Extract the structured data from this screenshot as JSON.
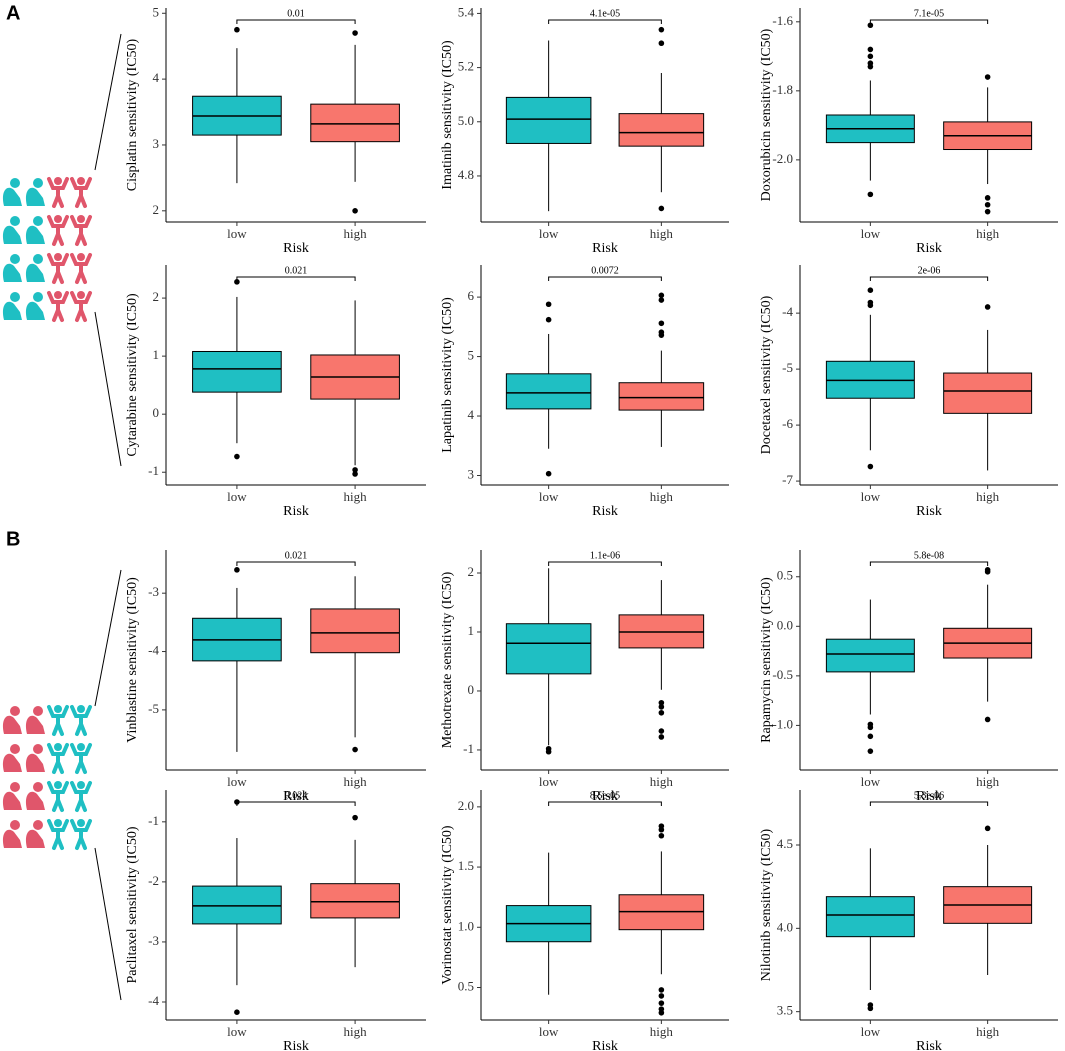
{
  "panel_labels": [
    "A",
    "B"
  ],
  "chart_data": [
    {
      "type": "box",
      "ylabel": "Cisplatin sensitivity (IC50)",
      "xlabel": "Risk",
      "categories": [
        "low",
        "high"
      ],
      "colors": [
        "#1FBFC3",
        "#F8766D"
      ],
      "p_value": "0.01",
      "ylim": [
        1.83,
        5.08
      ],
      "yticks": [
        2,
        3,
        4,
        5
      ],
      "boxes": [
        {
          "min": 2.42,
          "q1": 3.15,
          "median": 3.44,
          "q3": 3.74,
          "max": 4.47,
          "outliers": [
            4.75
          ]
        },
        {
          "min": 2.44,
          "q1": 3.05,
          "median": 3.32,
          "q3": 3.62,
          "max": 4.52,
          "outliers": [
            4.7,
            2.0
          ]
        }
      ]
    },
    {
      "type": "box",
      "ylabel": "Imatinib sensitivity (IC50)",
      "xlabel": "Risk",
      "categories": [
        "low",
        "high"
      ],
      "colors": [
        "#1FBFC3",
        "#F8766D"
      ],
      "p_value": "4.1e-05",
      "ylim": [
        4.63,
        5.42
      ],
      "yticks": [
        4.8,
        {
          "value": 5,
          "label": "5.0"
        },
        5.2,
        5.4
      ],
      "boxes": [
        {
          "min": 4.67,
          "q1": 4.92,
          "median": 5.01,
          "q3": 5.09,
          "max": 5.3,
          "outliers": []
        },
        {
          "min": 4.74,
          "q1": 4.91,
          "median": 4.96,
          "q3": 5.03,
          "max": 5.18,
          "outliers": [
            5.34,
            5.29,
            4.68
          ]
        }
      ]
    },
    {
      "type": "box",
      "ylabel": "Doxorubicin sensitivity (IC50)",
      "xlabel": "Risk",
      "categories": [
        "low",
        "high"
      ],
      "colors": [
        "#1FBFC3",
        "#F8766D"
      ],
      "p_value": "7.1e-05",
      "ylim": [
        -2.18,
        -1.56
      ],
      "yticks": [
        {
          "value": -2,
          "label": "-2.0"
        },
        -1.8,
        -1.6
      ],
      "boxes": [
        {
          "min": -2.06,
          "q1": -1.95,
          "median": -1.91,
          "q3": -1.87,
          "max": -1.77,
          "outliers": [
            -1.61,
            -1.68,
            -1.7,
            -1.72,
            -1.73,
            -2.1
          ]
        },
        {
          "min": -2.07,
          "q1": -1.97,
          "median": -1.93,
          "q3": -1.89,
          "max": -1.79,
          "outliers": [
            -1.76,
            -2.11,
            -2.13,
            -2.15
          ]
        }
      ]
    },
    {
      "type": "box",
      "ylabel": "Cytarabine sensitivity (IC50)",
      "xlabel": "Risk",
      "categories": [
        "low",
        "high"
      ],
      "colors": [
        "#1FBFC3",
        "#F8766D"
      ],
      "p_value": "0.021",
      "ylim": [
        -1.22,
        2.57
      ],
      "yticks": [
        -1,
        0,
        1,
        2
      ],
      "boxes": [
        {
          "min": -0.5,
          "q1": 0.38,
          "median": 0.78,
          "q3": 1.08,
          "max": 2.02,
          "outliers": [
            2.28,
            -0.73
          ]
        },
        {
          "min": -0.88,
          "q1": 0.26,
          "median": 0.64,
          "q3": 1.02,
          "max": 1.96,
          "outliers": [
            -0.96,
            -1.03
          ]
        }
      ]
    },
    {
      "type": "box",
      "ylabel": "Lapatinib sensitivity (IC50)",
      "xlabel": "Risk",
      "categories": [
        "low",
        "high"
      ],
      "colors": [
        "#1FBFC3",
        "#F8766D"
      ],
      "p_value": "0.0072",
      "ylim": [
        2.84,
        6.54
      ],
      "yticks": [
        3,
        4,
        5,
        6
      ],
      "boxes": [
        {
          "min": 3.45,
          "q1": 4.12,
          "median": 4.39,
          "q3": 4.71,
          "max": 5.38,
          "outliers": [
            5.88,
            5.62,
            3.03
          ]
        },
        {
          "min": 3.48,
          "q1": 4.1,
          "median": 4.31,
          "q3": 4.56,
          "max": 5.1,
          "outliers": [
            6.03,
            5.95,
            5.56,
            5.41,
            5.36
          ]
        }
      ]
    },
    {
      "type": "box",
      "ylabel": "Docetaxel sensitivity (IC50)",
      "xlabel": "Risk",
      "categories": [
        "low",
        "high"
      ],
      "colors": [
        "#1FBFC3",
        "#F8766D"
      ],
      "p_value": "2e-06",
      "ylim": [
        -7.07,
        -3.14
      ],
      "yticks": [
        -7,
        -6,
        -5,
        -4
      ],
      "boxes": [
        {
          "min": -6.45,
          "q1": -5.52,
          "median": -5.2,
          "q3": -4.86,
          "max": -4.03,
          "outliers": [
            -3.59,
            -3.81,
            -3.86,
            -6.74
          ]
        },
        {
          "min": -6.81,
          "q1": -5.79,
          "median": -5.39,
          "q3": -5.07,
          "max": -4.3,
          "outliers": [
            -3.89
          ]
        }
      ]
    },
    {
      "type": "box",
      "ylabel": "Vinblastine sensitivity (IC50)",
      "xlabel": "Risk",
      "categories": [
        "low",
        "high"
      ],
      "colors": [
        "#1FBFC3",
        "#F8766D"
      ],
      "p_value": "0.021",
      "ylim": [
        -6.03,
        -2.26
      ],
      "yticks": [
        -5,
        -4,
        -3
      ],
      "boxes": [
        {
          "min": -5.72,
          "q1": -4.16,
          "median": -3.8,
          "q3": -3.43,
          "max": -2.91,
          "outliers": [
            -2.6
          ]
        },
        {
          "min": -5.47,
          "q1": -4.02,
          "median": -3.68,
          "q3": -3.27,
          "max": -2.71,
          "outliers": [
            -5.68
          ]
        }
      ]
    },
    {
      "type": "box",
      "ylabel": "Methotrexate sensitivity (IC50)",
      "xlabel": "Risk",
      "categories": [
        "low",
        "high"
      ],
      "colors": [
        "#1FBFC3",
        "#F8766D"
      ],
      "p_value": "1.1e-06",
      "ylim": [
        -1.34,
        2.39
      ],
      "yticks": [
        -1,
        0,
        1,
        2
      ],
      "boxes": [
        {
          "min": -0.92,
          "q1": 0.29,
          "median": 0.81,
          "q3": 1.14,
          "max": 2.08,
          "outliers": [
            -0.98,
            -1.03
          ]
        },
        {
          "min": 0.02,
          "q1": 0.73,
          "median": 1.0,
          "q3": 1.29,
          "max": 1.88,
          "outliers": [
            -0.2,
            -0.27,
            -0.37,
            -0.68,
            -0.78
          ]
        }
      ]
    },
    {
      "type": "box",
      "ylabel": "Rapamycin sensitivity (IC50)",
      "xlabel": "Risk",
      "categories": [
        "low",
        "high"
      ],
      "colors": [
        "#1FBFC3",
        "#F8766D"
      ],
      "p_value": "5.8e-08",
      "ylim": [
        -1.45,
        0.77
      ],
      "yticks": [
        {
          "value": -1,
          "label": "-1.0"
        },
        -0.5,
        {
          "value": 0,
          "label": "0.0"
        },
        0.5
      ],
      "boxes": [
        {
          "min": -0.89,
          "q1": -0.46,
          "median": -0.28,
          "q3": -0.13,
          "max": 0.27,
          "outliers": [
            -0.99,
            -1.02,
            -1.11,
            -1.26
          ]
        },
        {
          "min": -0.76,
          "q1": -0.32,
          "median": -0.17,
          "q3": -0.02,
          "max": 0.42,
          "outliers": [
            0.57,
            0.55,
            -0.94
          ]
        }
      ]
    },
    {
      "type": "box",
      "ylabel": "Paclitaxel sensitivity (IC50)",
      "xlabel": "Risk",
      "categories": [
        "low",
        "high"
      ],
      "colors": [
        "#1FBFC3",
        "#F8766D"
      ],
      "p_value": "0.024",
      "ylim": [
        -4.3,
        -0.47
      ],
      "yticks": [
        -4,
        -3,
        -2,
        -1
      ],
      "boxes": [
        {
          "min": -3.72,
          "q1": -2.7,
          "median": -2.4,
          "q3": -2.07,
          "max": -1.27,
          "outliers": [
            -0.67,
            -4.17
          ]
        },
        {
          "min": -3.42,
          "q1": -2.6,
          "median": -2.33,
          "q3": -2.03,
          "max": -1.3,
          "outliers": [
            -0.93
          ]
        }
      ]
    },
    {
      "type": "box",
      "ylabel": "Vorinostat sensitivity (IC50)",
      "xlabel": "Risk",
      "categories": [
        "low",
        "high"
      ],
      "colors": [
        "#1FBFC3",
        "#F8766D"
      ],
      "p_value": "8.5e-05",
      "ylim": [
        0.23,
        2.14
      ],
      "yticks": [
        0.5,
        {
          "value": 1,
          "label": "1.0"
        },
        1.5,
        {
          "value": 2,
          "label": "2.0"
        }
      ],
      "boxes": [
        {
          "min": 0.44,
          "q1": 0.88,
          "median": 1.03,
          "q3": 1.18,
          "max": 1.62,
          "outliers": []
        },
        {
          "min": 0.61,
          "q1": 0.98,
          "median": 1.13,
          "q3": 1.27,
          "max": 1.63,
          "outliers": [
            1.84,
            1.81,
            1.76,
            0.48,
            0.43,
            0.37,
            0.32,
            0.29
          ]
        }
      ]
    },
    {
      "type": "box",
      "ylabel": "Nilotinib sensitivity (IC50)",
      "xlabel": "Risk",
      "categories": [
        "low",
        "high"
      ],
      "colors": [
        "#1FBFC3",
        "#F8766D"
      ],
      "p_value": "5.3e-06",
      "ylim": [
        3.45,
        4.83
      ],
      "yticks": [
        3.5,
        {
          "value": 4,
          "label": "4.0"
        },
        4.5
      ],
      "boxes": [
        {
          "min": 3.63,
          "q1": 3.95,
          "median": 4.08,
          "q3": 4.19,
          "max": 4.48,
          "outliers": [
            3.54,
            3.52
          ]
        },
        {
          "min": 3.72,
          "q1": 4.03,
          "median": 4.14,
          "q3": 4.25,
          "max": 4.5,
          "outliers": [
            4.6
          ]
        }
      ]
    }
  ]
}
